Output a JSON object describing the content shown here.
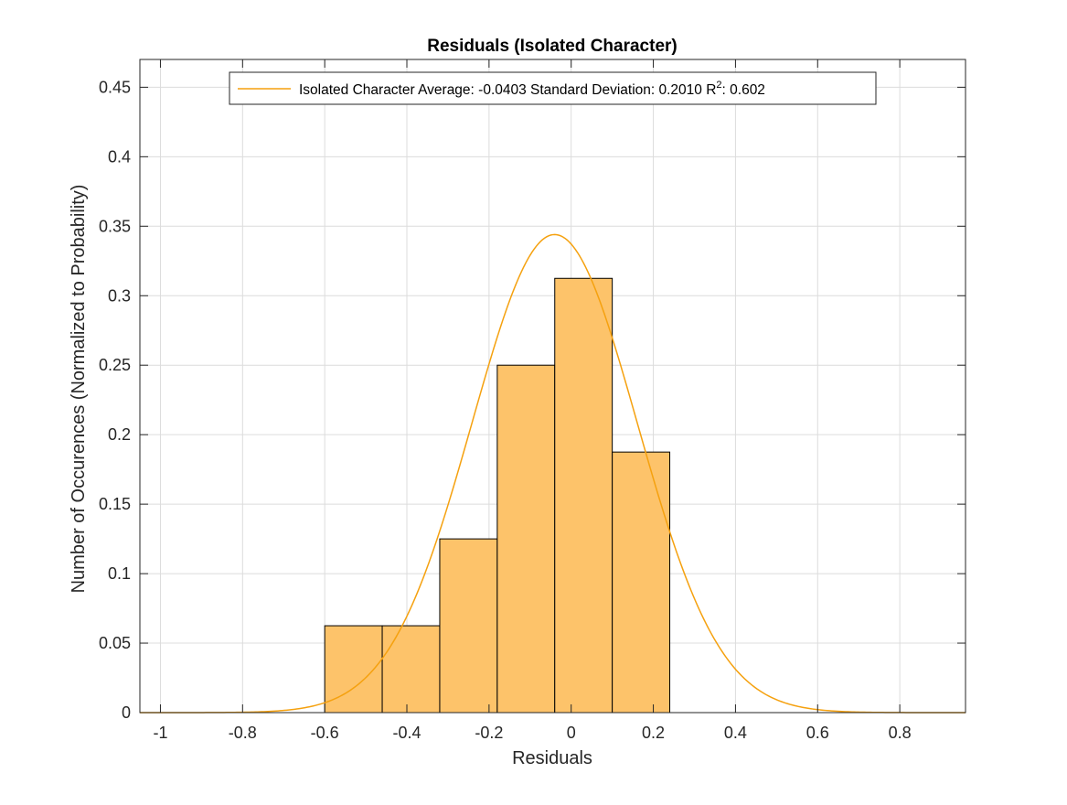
{
  "chart_data": {
    "type": "bar",
    "title": "Residuals (Isolated Character)",
    "xlabel": "Residuals",
    "ylabel": "Number of Occurences (Normalized to Probability)",
    "xlim": [
      -1.05,
      0.96
    ],
    "ylim": [
      0,
      0.47
    ],
    "grid": true,
    "legend_position": "top",
    "xticks": [
      -1,
      -0.8,
      -0.6,
      -0.4,
      -0.2,
      0,
      0.2,
      0.4,
      0.6,
      0.8
    ],
    "xtick_labels": [
      "-1",
      "-0.8",
      "-0.6",
      "-0.4",
      "-0.2",
      "0",
      "0.2",
      "0.4",
      "0.6",
      "0.8"
    ],
    "yticks": [
      0,
      0.05,
      0.1,
      0.15,
      0.2,
      0.25,
      0.3,
      0.35,
      0.4,
      0.45
    ],
    "ytick_labels": [
      "0",
      "0.05",
      "0.1",
      "0.15",
      "0.2",
      "0.25",
      "0.3",
      "0.35",
      "0.4",
      "0.45"
    ],
    "bin_edges": [
      -0.6,
      -0.46,
      -0.32,
      -0.18,
      -0.04,
      0.1,
      0.24
    ],
    "values": [
      0.0625,
      0.0625,
      0.125,
      0.25,
      0.3125,
      0.1875
    ],
    "fit": {
      "type": "normal-pdf",
      "mean": -0.0403,
      "std": 0.201,
      "peak": 0.344
    },
    "legend": {
      "prefix": "Isolated Character Average: -0.0403 Standard Deviation: 0.2010 R",
      "superscript": "2",
      "suffix": ": 0.602"
    },
    "colors": {
      "bar_fill": "#FDC36A",
      "bar_edge": "#000000",
      "fit_line": "#F5A10F",
      "grid": "#dcdcdc",
      "axis": "#262626"
    }
  }
}
